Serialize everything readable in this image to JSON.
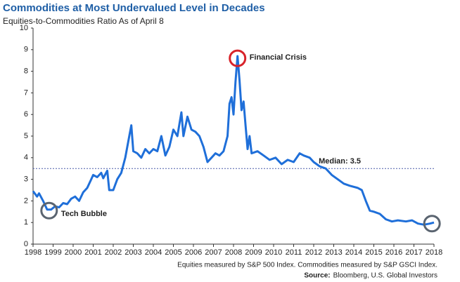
{
  "chart_data": {
    "type": "line",
    "title": "Commodities at Most Undervalued Level in Decades",
    "subtitle": "Equities-to-Commodities Ratio As of April 8",
    "footnote": "Equities measured by S&P 500 Index. Commodities measured by S&P GSCI Index.",
    "source_label": "Source:",
    "source": "Bloomberg, U.S. Global Investors",
    "xlim": [
      1998,
      2018
    ],
    "xticks": [
      1998,
      1999,
      2000,
      2001,
      2002,
      2003,
      2004,
      2005,
      2006,
      2007,
      2008,
      2009,
      2010,
      2011,
      2012,
      2013,
      2014,
      2015,
      2016,
      2017,
      2018
    ],
    "ylim": [
      0,
      10
    ],
    "yticks": [
      0,
      1,
      2,
      3,
      4,
      5,
      6,
      7,
      8,
      9,
      10
    ],
    "grid": false,
    "x": [
      1998.0,
      1998.2,
      1998.3,
      1998.5,
      1998.7,
      1998.9,
      1999.1,
      1999.3,
      1999.5,
      1999.7,
      1999.9,
      2000.1,
      2000.3,
      2000.5,
      2000.7,
      2000.9,
      2001.0,
      2001.2,
      2001.4,
      2001.5,
      2001.7,
      2001.8,
      2002.0,
      2002.2,
      2002.4,
      2002.6,
      2002.8,
      2002.9,
      2003.0,
      2003.2,
      2003.4,
      2003.6,
      2003.8,
      2004.0,
      2004.2,
      2004.4,
      2004.6,
      2004.8,
      2005.0,
      2005.2,
      2005.4,
      2005.5,
      2005.7,
      2005.9,
      2006.1,
      2006.3,
      2006.5,
      2006.7,
      2006.9,
      2007.1,
      2007.3,
      2007.5,
      2007.7,
      2007.8,
      2007.9,
      2008.0,
      2008.1,
      2008.2,
      2008.3,
      2008.4,
      2008.5,
      2008.6,
      2008.7,
      2008.8,
      2008.9,
      2009.2,
      2009.5,
      2009.8,
      2010.1,
      2010.4,
      2010.7,
      2011.0,
      2011.3,
      2011.5,
      2011.8,
      2012.0,
      2012.3,
      2012.6,
      2012.9,
      2013.2,
      2013.5,
      2013.8,
      2014.2,
      2014.4,
      2014.6,
      2014.8,
      2015.0,
      2015.3,
      2015.6,
      2015.9,
      2016.2,
      2016.6,
      2016.9,
      2017.2,
      2017.5,
      2017.8,
      2018.0
    ],
    "series": [
      {
        "name": "Equities-to-Commodities Ratio",
        "color": "#1f6fd9",
        "values": [
          2.45,
          2.2,
          2.35,
          2.0,
          1.6,
          1.6,
          1.75,
          1.7,
          1.9,
          1.85,
          2.1,
          2.2,
          2.0,
          2.4,
          2.6,
          3.0,
          3.2,
          3.1,
          3.3,
          3.05,
          3.4,
          2.5,
          2.5,
          3.0,
          3.3,
          4.0,
          5.0,
          5.5,
          4.3,
          4.2,
          4.0,
          4.4,
          4.2,
          4.4,
          4.3,
          5.0,
          4.1,
          4.5,
          5.3,
          5.0,
          6.1,
          5.0,
          5.9,
          5.3,
          5.2,
          5.0,
          4.5,
          3.8,
          4.0,
          4.2,
          4.1,
          4.3,
          5.0,
          6.5,
          6.8,
          6.0,
          7.5,
          8.7,
          7.6,
          6.2,
          6.6,
          5.5,
          4.4,
          5.0,
          4.2,
          4.3,
          4.1,
          3.9,
          4.0,
          3.7,
          3.9,
          3.8,
          4.2,
          4.1,
          4.0,
          3.8,
          3.6,
          3.5,
          3.2,
          3.0,
          2.8,
          2.7,
          2.6,
          2.5,
          2.0,
          1.55,
          1.5,
          1.4,
          1.15,
          1.05,
          1.1,
          1.05,
          1.1,
          0.95,
          0.9,
          0.95,
          1.0
        ]
      }
    ],
    "reference_line": {
      "value": 3.5,
      "label": "Median: 3.5",
      "color": "#4a5aa8"
    },
    "annotations": [
      {
        "text": "Financial Crisis",
        "x": 2008.2,
        "y": 8.6,
        "color": "#d8232a"
      },
      {
        "text": "Tech Bubble",
        "x": 1998.8,
        "y": 1.55,
        "color": "#5a6470"
      },
      {
        "x": 2017.9,
        "y": 0.95,
        "color": "#5a6470"
      }
    ]
  }
}
